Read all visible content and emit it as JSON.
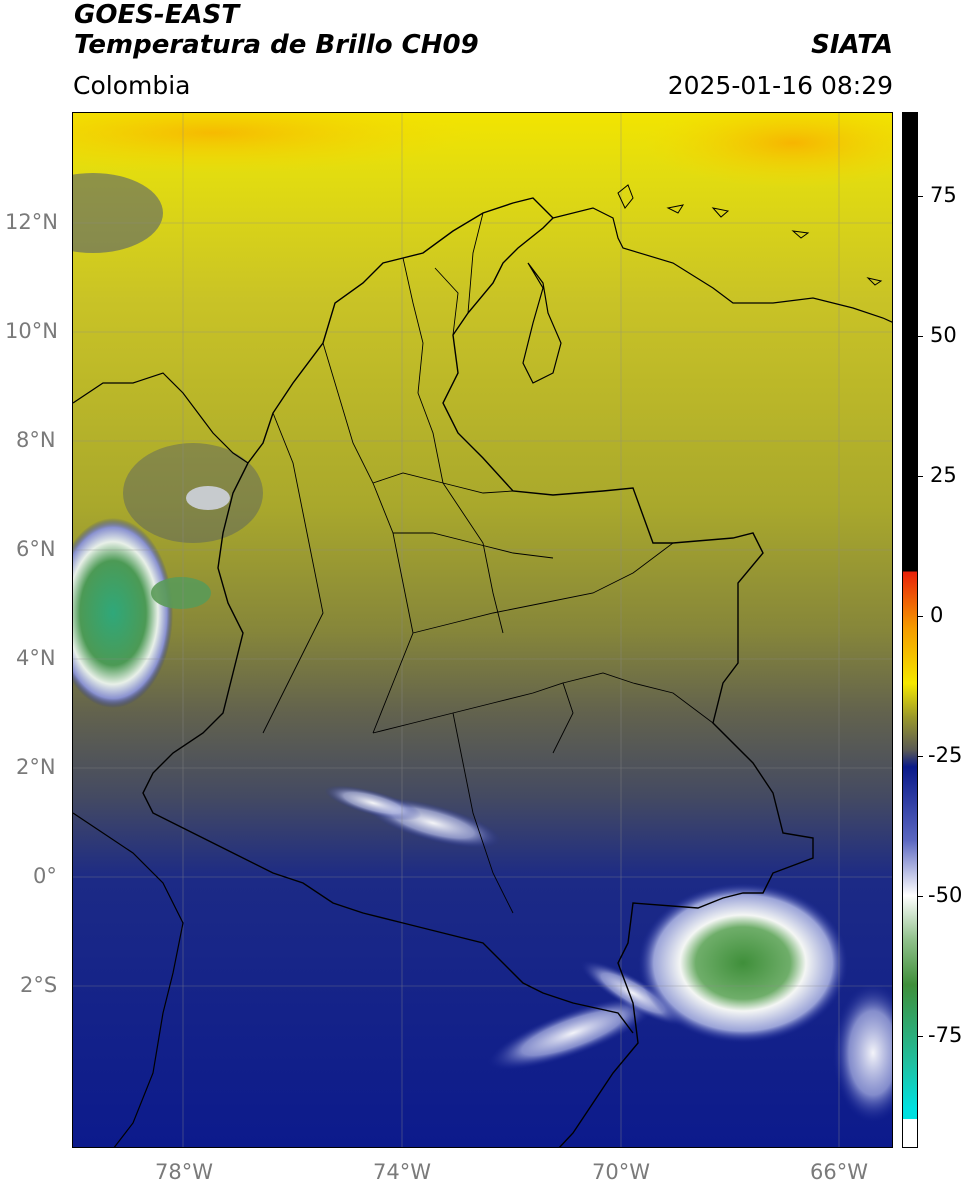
{
  "header": {
    "satellite": "GOES-EAST",
    "product": "Temperatura de Brillo CH09",
    "institution": "SIATA",
    "region": "Colombia",
    "datetime": "2025-01-16 08:29"
  },
  "map": {
    "lat_range": [
      -5,
      14
    ],
    "lon_range": [
      -80,
      -65
    ],
    "gridlines": true,
    "lat_ticks": [
      "12°N",
      "10°N",
      "8°N",
      "6°N",
      "4°N",
      "2°N",
      "0°",
      "2°S"
    ],
    "lon_ticks": [
      "78°W",
      "74°W",
      "70°W",
      "66°W"
    ]
  },
  "colorbar": {
    "ticks": [
      "75",
      "50",
      "25",
      "0",
      "-25",
      "-50",
      "-75"
    ],
    "tick_values": [
      75,
      50,
      25,
      0,
      -25,
      -50,
      -75
    ],
    "range": [
      -95,
      90
    ],
    "colors": {
      "black": "#000000",
      "red": "#e8200a",
      "orange": "#f59a00",
      "yellow": "#f5e800",
      "olive": "#9c9a2a",
      "gray": "#5a5a55",
      "navy": "#0a1a8a",
      "white": "#ffffff",
      "green": "#3f8f3a",
      "teal": "#20c0a0",
      "cyan": "#00e0e0"
    }
  }
}
